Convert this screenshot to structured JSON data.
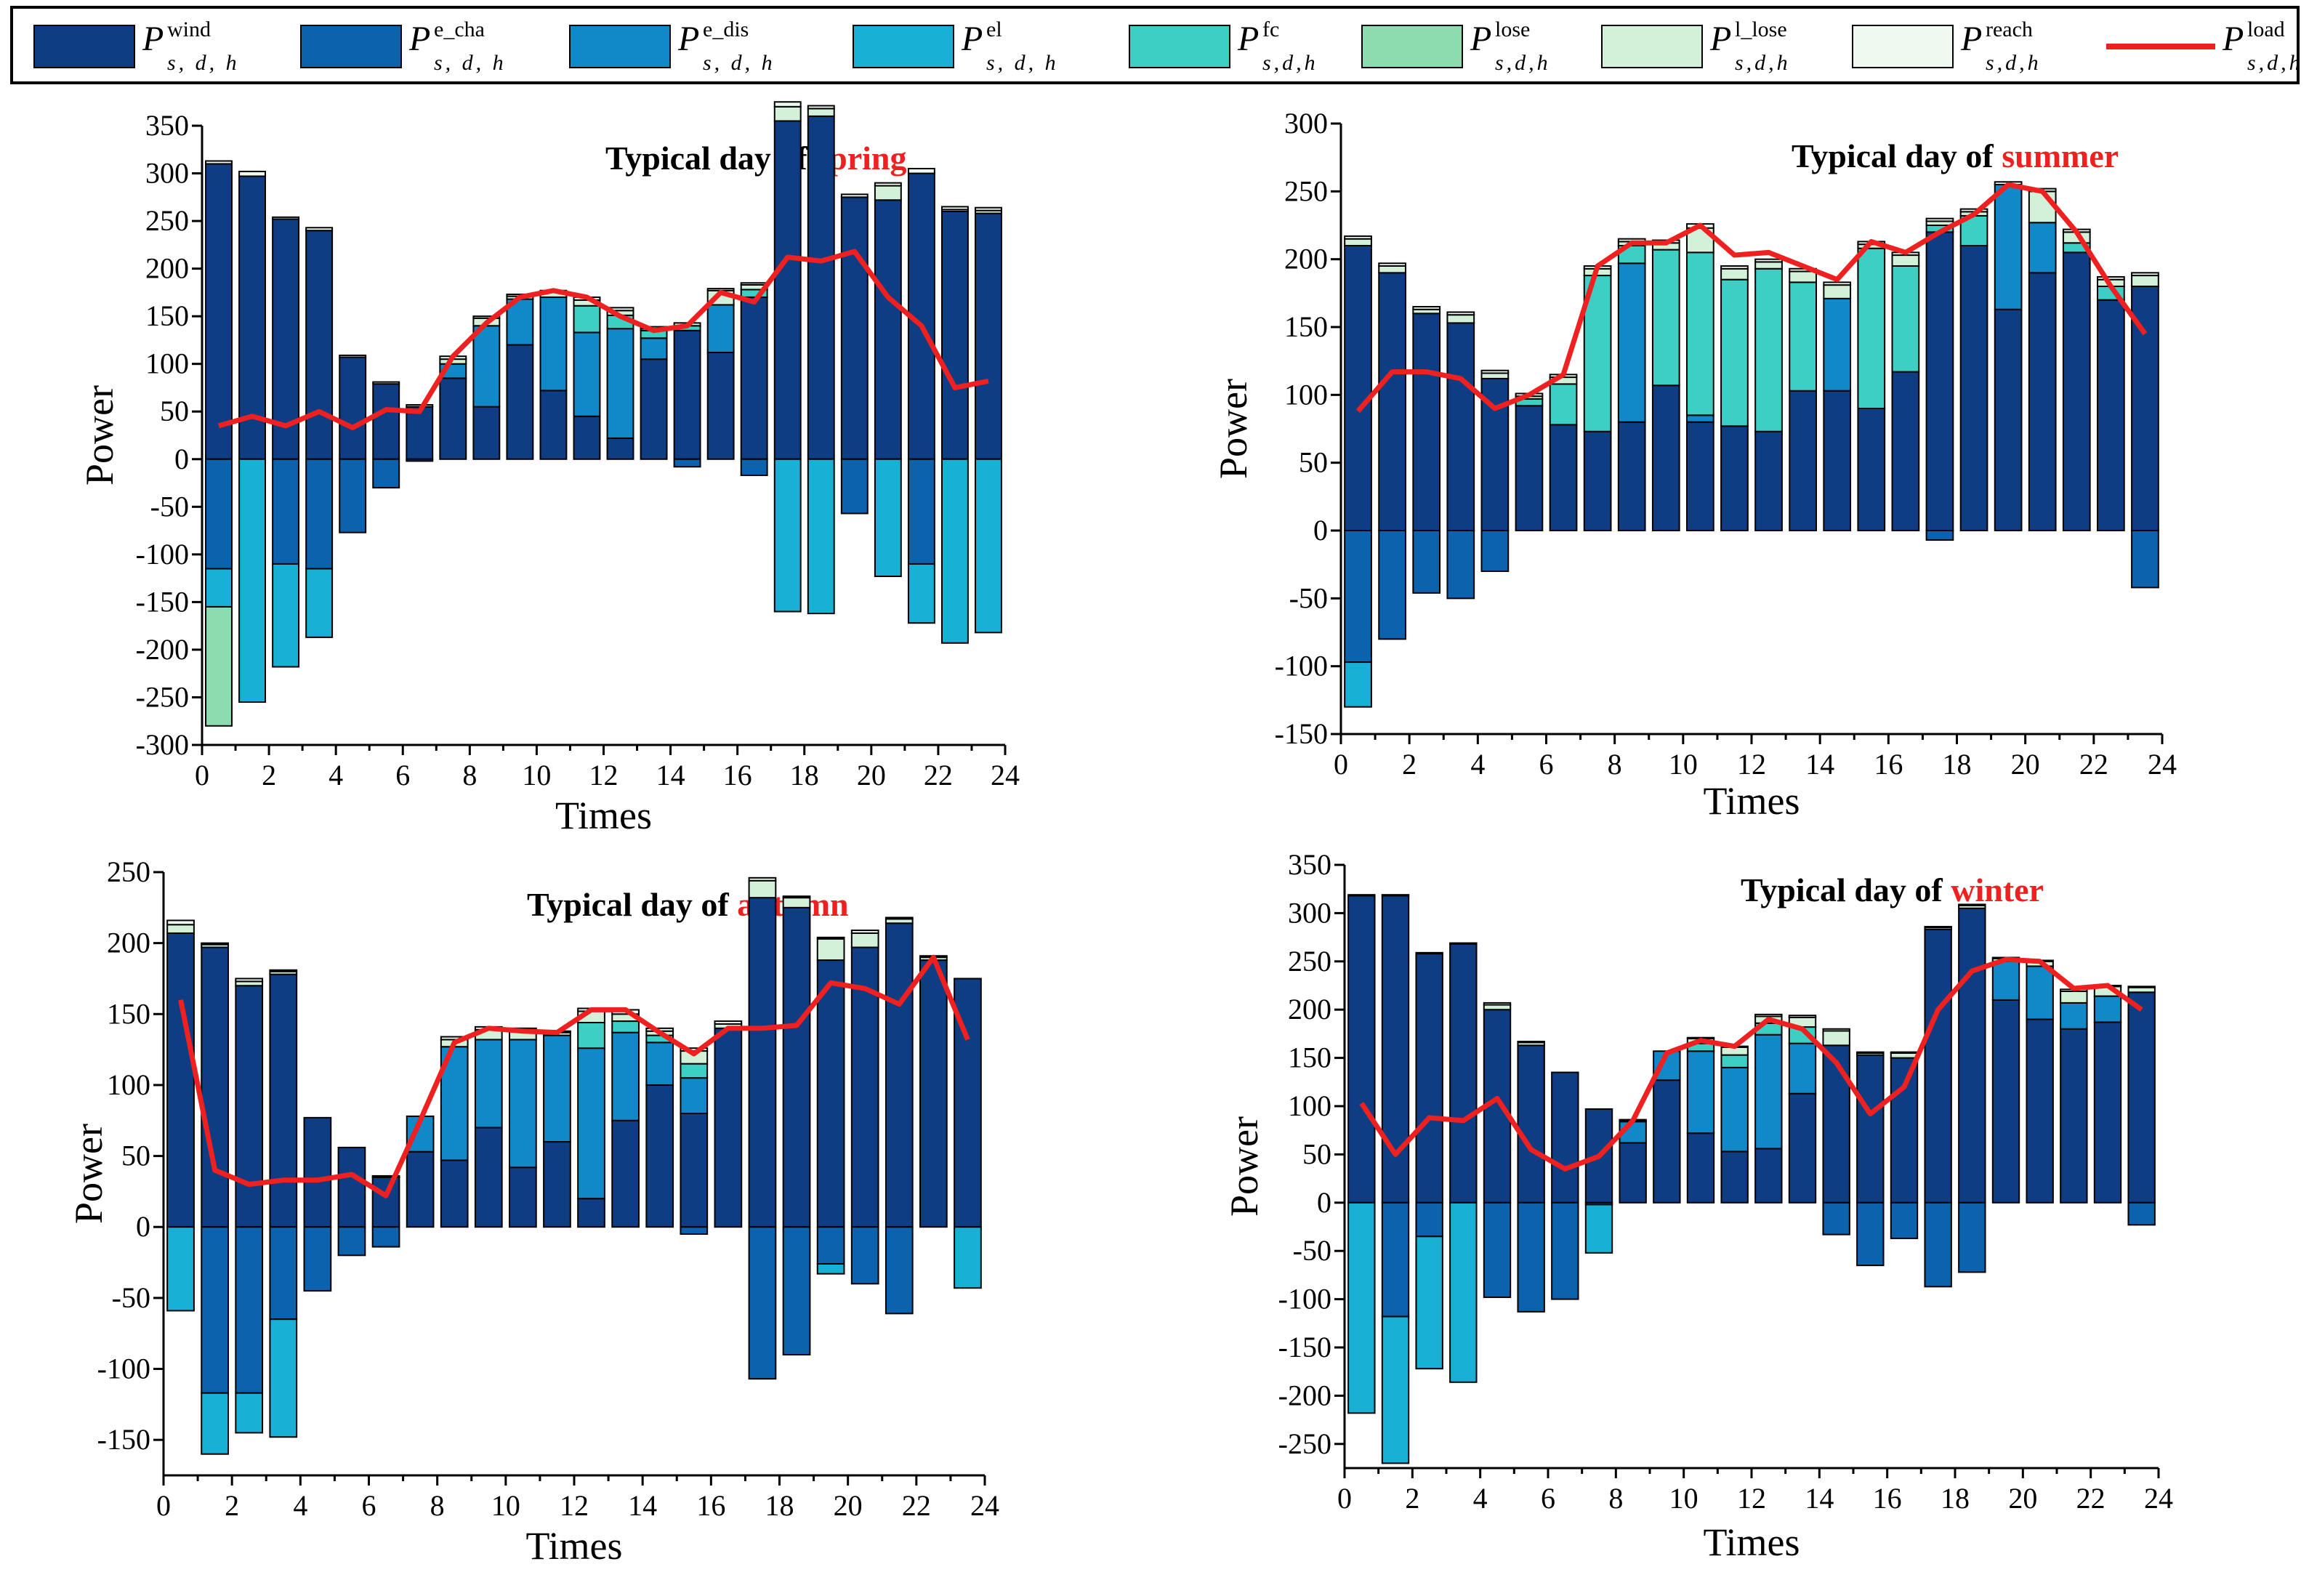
{
  "legend": {
    "items": [
      {
        "key": "wind",
        "base": "P",
        "sup": "wind",
        "sub": "s, d, h",
        "color": "#0e3d84",
        "kind": "bar"
      },
      {
        "key": "e_cha",
        "base": "P",
        "sup": "e_cha",
        "sub": "s, d, h",
        "color": "#0d62ad",
        "kind": "bar"
      },
      {
        "key": "e_dis",
        "base": "P",
        "sup": "e_dis",
        "sub": "s, d, h",
        "color": "#1188c7",
        "kind": "bar"
      },
      {
        "key": "el",
        "base": "P",
        "sup": "el",
        "sub": "s, d, h",
        "color": "#18b0d5",
        "kind": "bar"
      },
      {
        "key": "fc",
        "base": "P",
        "sup": "fc",
        "sub": "s,d,h",
        "color": "#3ecfc4",
        "kind": "bar"
      },
      {
        "key": "lose",
        "base": "P",
        "sup": "lose",
        "sub": "s,d,h",
        "color": "#8ddcb0",
        "kind": "bar"
      },
      {
        "key": "l_lose",
        "base": "P",
        "sup": "l_lose",
        "sub": "s,d,h",
        "color": "#d3f0d8",
        "kind": "bar"
      },
      {
        "key": "reach",
        "base": "P",
        "sup": "reach",
        "sub": "s,d,h",
        "color": "#eef9ef",
        "kind": "bar"
      },
      {
        "key": "load",
        "base": "P",
        "sup": "load",
        "sub": "s,d,h",
        "color": "#ee2020",
        "kind": "line"
      }
    ]
  },
  "chart_data": [
    {
      "type": "bar",
      "title_prefix": "Typical day of ",
      "title_season": "spring",
      "xlabel": "Times",
      "ylabel": "Power",
      "xlim": [
        0,
        24
      ],
      "ylim": [
        -300,
        350
      ],
      "xticks": [
        0,
        2,
        4,
        6,
        8,
        10,
        12,
        14,
        16,
        18,
        20,
        22,
        24
      ],
      "yticks": [
        -300,
        -250,
        -200,
        -150,
        -100,
        -50,
        0,
        50,
        100,
        150,
        200,
        250,
        300,
        350
      ],
      "hours": [
        1,
        2,
        3,
        4,
        5,
        6,
        7,
        8,
        9,
        10,
        11,
        12,
        13,
        14,
        15,
        16,
        17,
        18,
        19,
        20,
        21,
        22,
        23,
        24
      ],
      "wind": [
        310,
        297,
        252,
        240,
        107,
        79,
        55,
        85,
        55,
        120,
        72,
        45,
        22,
        105,
        135,
        112,
        170,
        355,
        360,
        275,
        272,
        300,
        260,
        258
      ],
      "e_dis": [
        0,
        0,
        0,
        0,
        0,
        0,
        0,
        15,
        85,
        48,
        98,
        88,
        115,
        22,
        0,
        50,
        0,
        0,
        0,
        0,
        0,
        0,
        0,
        0
      ],
      "fc": [
        0,
        0,
        0,
        0,
        0,
        0,
        0,
        0,
        0,
        0,
        0,
        28,
        14,
        8,
        5,
        0,
        8,
        0,
        0,
        0,
        0,
        0,
        0,
        0
      ],
      "l_lose": [
        0,
        0,
        0,
        0,
        0,
        0,
        0,
        5,
        8,
        3,
        5,
        6,
        5,
        2,
        3,
        15,
        5,
        15,
        8,
        0,
        15,
        0,
        2,
        3
      ],
      "reach": [
        3,
        5,
        2,
        3,
        2,
        2,
        2,
        3,
        2,
        2,
        2,
        3,
        3,
        2,
        0,
        2,
        2,
        5,
        3,
        3,
        3,
        5,
        3,
        3
      ],
      "e_cha": [
        -115,
        0,
        -110,
        -115,
        -77,
        -30,
        -2,
        0,
        0,
        0,
        0,
        0,
        0,
        0,
        -8,
        0,
        -17,
        0,
        0,
        -57,
        0,
        -110,
        0,
        0
      ],
      "el": [
        -40,
        -255,
        -108,
        -72,
        0,
        0,
        0,
        0,
        0,
        0,
        0,
        0,
        0,
        0,
        0,
        0,
        0,
        -160,
        -162,
        0,
        -123,
        -62,
        -193,
        -182
      ],
      "lose": [
        -125,
        0,
        0,
        0,
        0,
        0,
        0,
        0,
        0,
        0,
        0,
        0,
        0,
        0,
        0,
        0,
        0,
        0,
        0,
        0,
        0,
        0,
        0,
        0
      ],
      "load": [
        35,
        45,
        35,
        50,
        33,
        52,
        50,
        108,
        143,
        170,
        177,
        170,
        150,
        135,
        140,
        175,
        165,
        212,
        208,
        218,
        170,
        140,
        75,
        82
      ]
    },
    {
      "type": "bar",
      "title_prefix": "Typical day of ",
      "title_season": "summer",
      "xlabel": "Times",
      "ylabel": "Power",
      "xlim": [
        0,
        24
      ],
      "ylim": [
        -150,
        300
      ],
      "xticks": [
        0,
        2,
        4,
        6,
        8,
        10,
        12,
        14,
        16,
        18,
        20,
        22,
        24
      ],
      "yticks": [
        -150,
        -100,
        -50,
        0,
        50,
        100,
        150,
        200,
        250,
        300
      ],
      "hours": [
        1,
        2,
        3,
        4,
        5,
        6,
        7,
        8,
        9,
        10,
        11,
        12,
        13,
        14,
        15,
        16,
        17,
        18,
        19,
        20,
        21,
        22,
        23,
        24
      ],
      "wind": [
        210,
        190,
        160,
        153,
        112,
        92,
        78,
        73,
        80,
        107,
        80,
        77,
        73,
        103,
        103,
        90,
        117,
        220,
        210,
        163,
        190,
        205,
        170,
        180
      ],
      "e_dis": [
        0,
        0,
        0,
        0,
        0,
        0,
        0,
        0,
        117,
        0,
        5,
        0,
        0,
        0,
        68,
        0,
        0,
        0,
        0,
        92,
        37,
        0,
        0,
        0
      ],
      "fc": [
        0,
        0,
        0,
        0,
        0,
        5,
        30,
        115,
        13,
        100,
        120,
        108,
        120,
        80,
        0,
        118,
        78,
        5,
        22,
        0,
        0,
        7,
        10,
        0
      ],
      "l_lose": [
        5,
        5,
        3,
        6,
        4,
        2,
        5,
        5,
        3,
        5,
        18,
        8,
        5,
        8,
        10,
        3,
        8,
        3,
        3,
        0,
        23,
        8,
        5,
        8
      ],
      "reach": [
        2,
        2,
        2,
        2,
        2,
        2,
        2,
        2,
        2,
        2,
        3,
        2,
        2,
        2,
        2,
        2,
        2,
        2,
        2,
        2,
        2,
        2,
        2,
        2
      ],
      "e_cha": [
        -97,
        -80,
        -46,
        -50,
        -30,
        0,
        0,
        0,
        0,
        0,
        0,
        0,
        0,
        0,
        0,
        0,
        0,
        -7,
        0,
        0,
        0,
        0,
        0,
        -42
      ],
      "el": [
        -33,
        0,
        0,
        0,
        0,
        0,
        0,
        0,
        0,
        0,
        0,
        0,
        0,
        0,
        0,
        0,
        0,
        0,
        0,
        0,
        0,
        0,
        0,
        0
      ],
      "lose": [
        0,
        0,
        0,
        0,
        0,
        0,
        0,
        0,
        0,
        0,
        0,
        0,
        0,
        0,
        0,
        0,
        0,
        0,
        0,
        0,
        0,
        0,
        0,
        0
      ],
      "load": [
        88,
        117,
        117,
        112,
        90,
        100,
        115,
        195,
        212,
        212,
        225,
        203,
        205,
        195,
        185,
        213,
        205,
        220,
        233,
        255,
        250,
        220,
        180,
        145
      ]
    },
    {
      "type": "bar",
      "title_prefix": "Typical day of ",
      "title_season": "autumn",
      "xlabel": "Times",
      "ylabel": "Power",
      "xlim": [
        0,
        24
      ],
      "ylim": [
        -175,
        250
      ],
      "xticks": [
        0,
        2,
        4,
        6,
        8,
        10,
        12,
        14,
        16,
        18,
        20,
        22,
        24
      ],
      "yticks": [
        -150,
        -100,
        -50,
        0,
        50,
        100,
        150,
        200,
        250
      ],
      "hours": [
        1,
        2,
        3,
        4,
        5,
        6,
        7,
        8,
        9,
        10,
        11,
        12,
        13,
        14,
        15,
        16,
        17,
        18,
        19,
        20,
        21,
        22,
        23,
        24
      ],
      "wind": [
        207,
        197,
        170,
        178,
        77,
        56,
        35,
        53,
        47,
        70,
        42,
        60,
        20,
        75,
        100,
        80,
        140,
        232,
        225,
        188,
        197,
        214,
        188,
        175
      ],
      "e_dis": [
        0,
        0,
        0,
        0,
        0,
        0,
        0,
        25,
        80,
        62,
        90,
        75,
        106,
        62,
        30,
        25,
        0,
        0,
        0,
        0,
        0,
        0,
        0,
        0
      ],
      "fc": [
        0,
        0,
        0,
        0,
        0,
        0,
        0,
        0,
        0,
        0,
        0,
        0,
        18,
        8,
        5,
        10,
        0,
        0,
        0,
        0,
        0,
        0,
        0,
        0
      ],
      "l_lose": [
        6,
        2,
        3,
        2,
        0,
        0,
        0,
        0,
        5,
        7,
        7,
        2,
        8,
        5,
        3,
        9,
        3,
        12,
        7,
        15,
        10,
        3,
        2,
        0
      ],
      "reach": [
        3,
        1,
        2,
        1,
        0,
        0,
        1,
        0,
        2,
        2,
        1,
        1,
        2,
        3,
        2,
        2,
        2,
        2,
        1,
        1,
        2,
        1,
        1,
        0
      ],
      "e_cha": [
        0,
        -117,
        -117,
        -65,
        -45,
        -20,
        -14,
        0,
        0,
        0,
        0,
        0,
        0,
        0,
        0,
        -5,
        0,
        -107,
        -90,
        -26,
        -40,
        -61,
        0,
        0
      ],
      "el": [
        -59,
        -43,
        -28,
        -83,
        0,
        0,
        0,
        0,
        0,
        0,
        0,
        0,
        0,
        0,
        0,
        0,
        0,
        0,
        0,
        -7,
        0,
        0,
        0,
        -43
      ],
      "lose": [
        0,
        0,
        0,
        0,
        0,
        0,
        0,
        0,
        0,
        0,
        0,
        0,
        0,
        0,
        0,
        0,
        0,
        0,
        0,
        0,
        0,
        0,
        0,
        0
      ],
      "load": [
        160,
        40,
        30,
        33,
        33,
        37,
        22,
        75,
        130,
        140,
        138,
        137,
        153,
        153,
        137,
        122,
        140,
        140,
        142,
        172,
        168,
        157,
        190,
        132
      ]
    },
    {
      "type": "bar",
      "title_prefix": "Typical day of ",
      "title_season": "winter",
      "xlabel": "Times",
      "ylabel": "Power",
      "xlim": [
        0,
        24
      ],
      "ylim": [
        -275,
        350
      ],
      "xticks": [
        0,
        2,
        4,
        6,
        8,
        10,
        12,
        14,
        16,
        18,
        20,
        22,
        24
      ],
      "yticks": [
        -250,
        -200,
        -150,
        -100,
        -50,
        0,
        50,
        100,
        150,
        200,
        250,
        300,
        350
      ],
      "hours": [
        1,
        2,
        3,
        4,
        5,
        6,
        7,
        8,
        9,
        10,
        11,
        12,
        13,
        14,
        15,
        16,
        17,
        18,
        19,
        20,
        21,
        22,
        23,
        24
      ],
      "wind": [
        318,
        318,
        258,
        268,
        200,
        163,
        135,
        97,
        62,
        127,
        72,
        53,
        56,
        113,
        163,
        153,
        150,
        283,
        305,
        210,
        190,
        180,
        187,
        218
      ],
      "e_dis": [
        0,
        0,
        0,
        0,
        0,
        0,
        0,
        0,
        22,
        30,
        85,
        87,
        118,
        52,
        0,
        0,
        0,
        0,
        0,
        40,
        55,
        27,
        27,
        0
      ],
      "fc": [
        0,
        0,
        0,
        0,
        0,
        0,
        0,
        0,
        0,
        0,
        8,
        13,
        12,
        17,
        0,
        0,
        0,
        0,
        0,
        0,
        0,
        0,
        0,
        0
      ],
      "l_lose": [
        0,
        0,
        0,
        0,
        5,
        3,
        0,
        0,
        1,
        0,
        5,
        8,
        7,
        10,
        15,
        2,
        5,
        2,
        3,
        3,
        5,
        12,
        10,
        5
      ],
      "reach": [
        1,
        1,
        1,
        1,
        2,
        1,
        0,
        0,
        1,
        0,
        1,
        1,
        2,
        2,
        2,
        1,
        1,
        1,
        1,
        1,
        1,
        2,
        1,
        1
      ],
      "e_cha": [
        0,
        -118,
        -35,
        0,
        -98,
        -113,
        -100,
        -2,
        0,
        0,
        0,
        0,
        0,
        0,
        -33,
        -65,
        -37,
        -87,
        -72,
        0,
        0,
        0,
        0,
        -23
      ],
      "el": [
        -218,
        -152,
        -137,
        -186,
        0,
        0,
        0,
        -50,
        0,
        0,
        0,
        0,
        0,
        0,
        0,
        0,
        0,
        0,
        0,
        0,
        0,
        0,
        0,
        0
      ],
      "lose": [
        0,
        0,
        0,
        0,
        0,
        0,
        0,
        0,
        0,
        0,
        0,
        0,
        0,
        0,
        0,
        0,
        0,
        0,
        0,
        0,
        0,
        0,
        0,
        0
      ],
      "load": [
        103,
        50,
        88,
        85,
        108,
        55,
        35,
        48,
        85,
        155,
        168,
        162,
        190,
        180,
        145,
        92,
        120,
        200,
        240,
        252,
        250,
        222,
        225,
        200
      ]
    }
  ]
}
